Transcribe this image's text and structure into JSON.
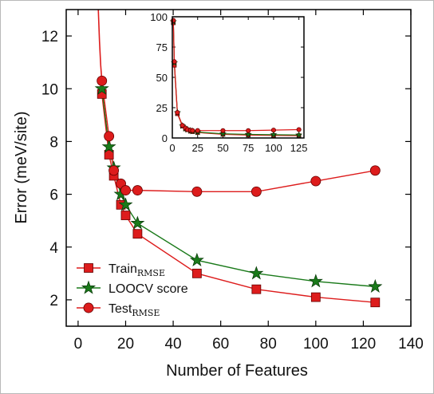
{
  "chart_data": [
    {
      "type": "line",
      "xlabel": "Number of Features",
      "ylabel": "Error (meV/site)",
      "xlim": [
        -5,
        140
      ],
      "ylim": [
        1.0,
        13.0
      ],
      "x_ticks": [
        0,
        20,
        40,
        60,
        80,
        100,
        120,
        140
      ],
      "y_ticks": [
        2,
        4,
        6,
        8,
        10,
        12
      ],
      "grid": false,
      "legend_position": "bottom-left",
      "series": [
        {
          "name": "Train",
          "name_subscript": "RMSE",
          "marker": "square",
          "color": "#dd1c1c",
          "x": [
            10,
            13,
            15,
            18,
            20,
            25,
            50,
            75,
            100,
            125
          ],
          "y": [
            9.8,
            7.5,
            6.7,
            5.6,
            5.2,
            4.5,
            3.0,
            2.4,
            2.1,
            1.9
          ]
        },
        {
          "name": "LOOCV score",
          "marker": "star",
          "color": "#1a7a1a",
          "x": [
            10,
            13,
            15,
            18,
            20,
            25,
            50,
            75,
            100,
            125
          ],
          "y": [
            10.0,
            7.8,
            7.0,
            6.0,
            5.6,
            4.9,
            3.5,
            3.0,
            2.7,
            2.5
          ]
        },
        {
          "name": "Test",
          "name_subscript": "RMSE",
          "marker": "circle",
          "color": "#dd1c1c",
          "x": [
            10,
            13,
            15,
            18,
            20,
            25,
            50,
            75,
            100,
            125
          ],
          "y": [
            10.3,
            8.2,
            6.9,
            6.4,
            6.15,
            6.15,
            6.1,
            6.1,
            6.5,
            6.9
          ]
        }
      ],
      "leading_curve": {
        "x": [
          8.5,
          9.0,
          9.5,
          10.0
        ],
        "y": [
          13.0,
          11.8,
          10.9,
          10.3
        ]
      }
    },
    {
      "type": "line",
      "role": "inset",
      "xlim": [
        0,
        130
      ],
      "ylim": [
        0,
        100
      ],
      "x_ticks": [
        0,
        25,
        50,
        75,
        100,
        125
      ],
      "y_ticks": [
        0,
        25,
        50,
        75,
        100
      ],
      "grid": false,
      "series": [
        {
          "marker": "square",
          "color": "#dd1c1c",
          "x": [
            1,
            2,
            5,
            10,
            13,
            15,
            18,
            20,
            25,
            50,
            75,
            100,
            125
          ],
          "y": [
            95,
            60,
            20,
            9.8,
            7.5,
            6.7,
            5.6,
            5.2,
            4.5,
            3.0,
            2.4,
            2.1,
            1.9
          ]
        },
        {
          "marker": "star",
          "color": "#1a7a1a",
          "x": [
            1,
            2,
            5,
            10,
            13,
            15,
            18,
            20,
            25,
            50,
            75,
            100,
            125
          ],
          "y": [
            96,
            62,
            21,
            10.0,
            7.8,
            7.0,
            6.0,
            5.6,
            4.9,
            3.5,
            3.0,
            2.7,
            2.5
          ]
        },
        {
          "marker": "circle",
          "color": "#dd1c1c",
          "x": [
            1,
            2,
            5,
            10,
            13,
            15,
            18,
            20,
            25,
            50,
            75,
            100,
            125
          ],
          "y": [
            97,
            63,
            21,
            10.3,
            8.2,
            6.9,
            6.4,
            6.15,
            6.15,
            6.1,
            6.1,
            6.5,
            6.9
          ]
        }
      ]
    }
  ]
}
